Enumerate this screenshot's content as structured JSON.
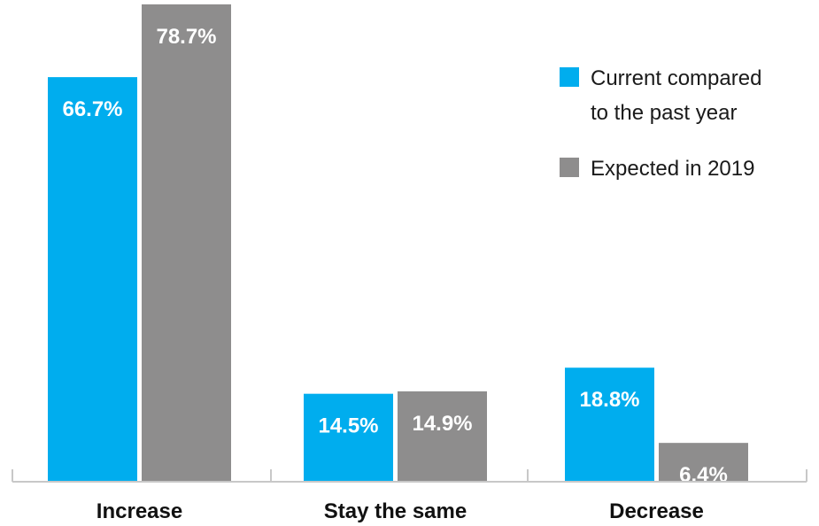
{
  "chart_data": {
    "type": "bar",
    "categories": [
      "Increase",
      "Stay the same",
      "Decrease"
    ],
    "series": [
      {
        "name": "Current compared to the past year",
        "legend_lines": [
          "Current compared",
          "to the past year"
        ],
        "color": "#00adee",
        "values": [
          66.7,
          14.5,
          18.8
        ],
        "labels": [
          "66.7%",
          "14.5%",
          "18.8%"
        ]
      },
      {
        "name": "Expected in 2019",
        "legend_lines": [
          "Expected in 2019"
        ],
        "color": "#8e8d8d",
        "values": [
          78.7,
          14.9,
          6.4
        ],
        "labels": [
          "78.7%",
          "14.9%",
          "6.4%"
        ]
      }
    ],
    "ylim": [
      0,
      80
    ],
    "grid": false,
    "legend_position": "top-right",
    "axis_color": "#c8c8c8"
  }
}
